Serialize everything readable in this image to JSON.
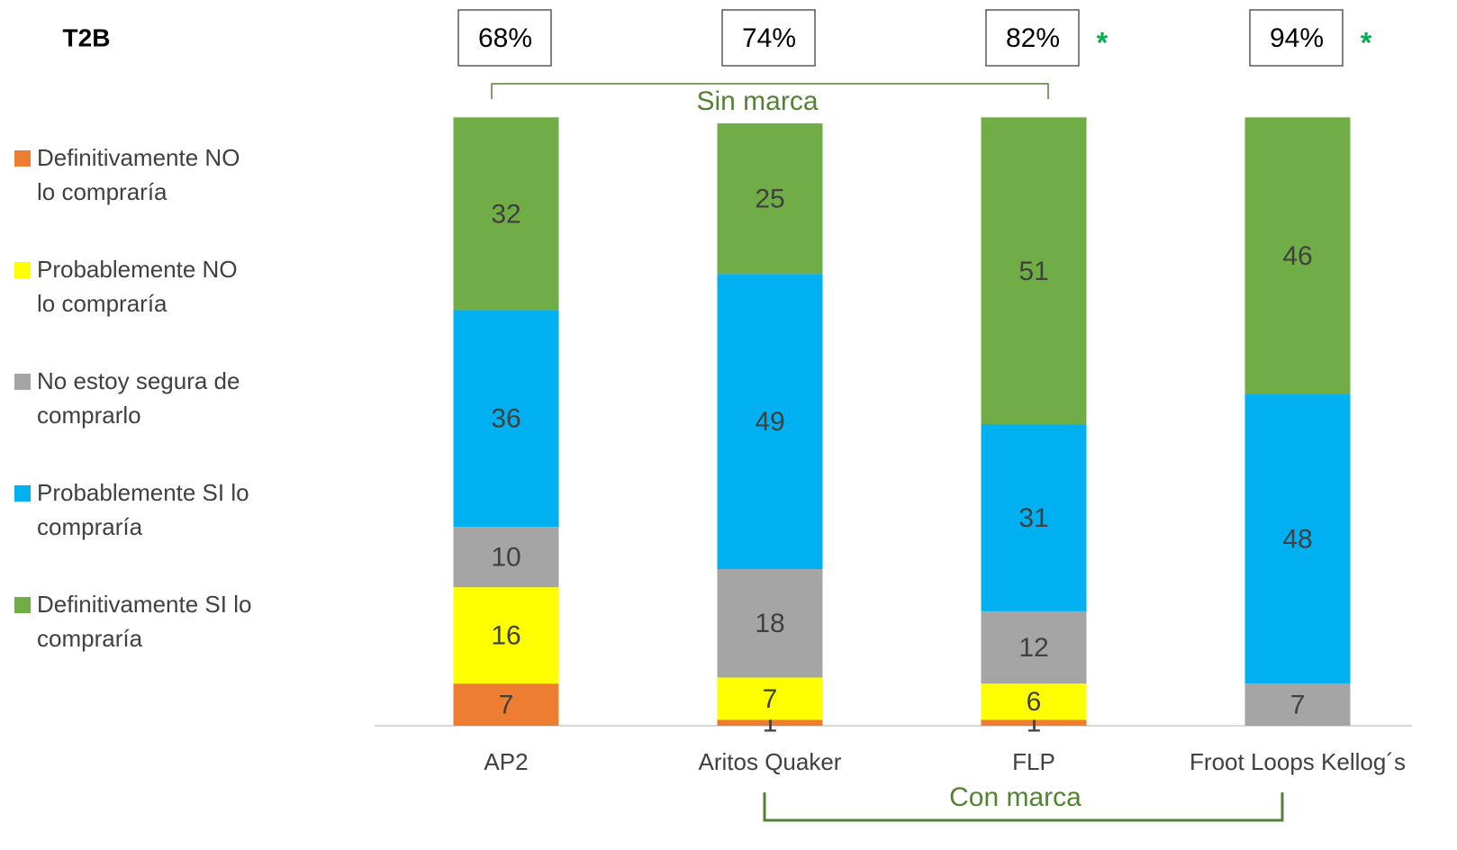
{
  "chart_data": {
    "type": "stacked_bar",
    "categories": [
      "AP2",
      "Aritos Quaker",
      "FLP",
      "Froot Loops Kellog´s"
    ],
    "series": [
      {
        "name": "Definitivamente NO lo compraría",
        "color": "#ED7D31",
        "values": [
          7,
          1,
          1,
          null
        ]
      },
      {
        "name": "Probablemente NO lo compraría",
        "color": "#FFFF00",
        "values": [
          16,
          7,
          6,
          null
        ]
      },
      {
        "name": "No estoy segura de comprarlo",
        "color": "#A5A5A5",
        "values": [
          10,
          18,
          12,
          7
        ]
      },
      {
        "name": "Probablemente SI lo compraría",
        "color": "#00B0F0",
        "values": [
          36,
          49,
          31,
          48
        ]
      },
      {
        "name": "Definitivamente SI lo compraría",
        "color": "#70AD47",
        "values": [
          32,
          25,
          51,
          46
        ]
      }
    ],
    "t2b": {
      "label": "T2B",
      "values": [
        68,
        74,
        82,
        94
      ],
      "value_labels": [
        "68%",
        "74%",
        "82%",
        "94%"
      ],
      "marks": [
        null,
        null,
        "*",
        "*"
      ]
    },
    "groups": [
      {
        "label": "Sin marca",
        "from": 0,
        "to": 2,
        "side": "top"
      },
      {
        "label": "Con marca",
        "from": 1,
        "to": 3,
        "side": "bottom"
      }
    ]
  }
}
